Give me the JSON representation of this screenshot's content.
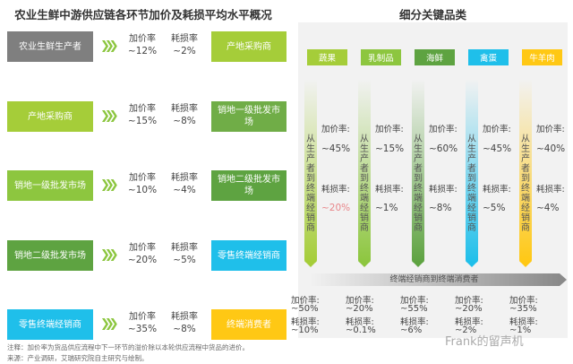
{
  "left": {
    "title": "农业生鲜中游供应链各环节加价及耗损平均水平概况",
    "markup_label": "加价率",
    "loss_label": "耗损率",
    "rows": [
      {
        "from": "农业生鲜生产者",
        "from_color": "#7f7f7f",
        "to": "产地采购商",
        "to_color": "#a5cd39",
        "markup": "~12%",
        "loss": "~2%"
      },
      {
        "from": "产地采购商",
        "from_color": "#a5cd39",
        "to": "销地一级批发市场",
        "to_color": "#70ad47",
        "markup": "~15%",
        "loss": "~8%"
      },
      {
        "from": "销地一级批发市场",
        "from_color": "#8dc63f",
        "to": "销地二级批发市场",
        "to_color": "#5ea341",
        "markup": "~10%",
        "loss": "~4%"
      },
      {
        "from": "销地二级批发市场",
        "from_color": "#5ea341",
        "to": "零售终端经销商",
        "to_color": "#1fbfea",
        "markup": "~20%",
        "loss": "~5%"
      },
      {
        "from": "零售终端经销商",
        "from_color": "#1fbfea",
        "to": "终端消费者",
        "to_color": "#ffc814",
        "markup": "~35%",
        "loss": "~8%"
      }
    ]
  },
  "right": {
    "title": "细分关键品类",
    "bar_text": "从生产者到终端经销商",
    "markup_label": "加价率:",
    "loss_label": "耗损率:",
    "flow_label": "终端经销商到终端消费者",
    "categories": [
      {
        "name": "蔬果",
        "color": "#a5cd39",
        "markup": "~45%",
        "loss": "~20%",
        "loss_color": "#e8868a",
        "c_markup": "~50%",
        "c_loss": "~10%"
      },
      {
        "name": "乳制品",
        "color": "#8dc63f",
        "markup": "~15%",
        "loss": "~1%",
        "loss_color": "#444",
        "c_markup": "~20%",
        "c_loss": "~0.1%"
      },
      {
        "name": "海鲜",
        "color": "#5ea341",
        "markup": "~60%",
        "loss": "~8%",
        "loss_color": "#444",
        "c_markup": "~55%",
        "c_loss": "~6%"
      },
      {
        "name": "禽蛋",
        "color": "#1fbfea",
        "markup": "~45%",
        "loss": "~5%",
        "loss_color": "#444",
        "c_markup": "~20%",
        "c_loss": "~2%"
      },
      {
        "name": "牛羊肉",
        "color": "#ffc814",
        "markup": "~40%",
        "loss": "~4%",
        "loss_color": "#444",
        "c_markup": "~35%",
        "c_loss": "~1%"
      }
    ]
  },
  "footnote": {
    "note": "注释：加价率为货品供应流程中下一环节的溢价除以本轮供应流程中货品的进价。",
    "source": "来源：产业调研，艾瑞研究院自主研究与绘制。"
  },
  "watermark": "Frank的留声机"
}
